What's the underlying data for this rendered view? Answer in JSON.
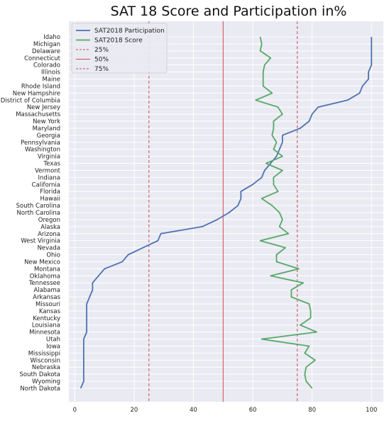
{
  "chart_data": {
    "type": "line",
    "orientation": "horizontal-categories",
    "title": "SAT 18 Score and Participation in%",
    "xlabel": "",
    "ylabel": "",
    "xlim": [
      -2,
      104
    ],
    "x_ticks": [
      0,
      20,
      40,
      60,
      80,
      100
    ],
    "grid": true,
    "legend_position": "top-left",
    "categories": [
      "Idaho",
      "Michigan",
      "Delaware",
      "Connecticut",
      "Colorado",
      "Illinois",
      "Maine",
      "Rhode Island",
      "New Hampshire",
      "District of Columbia",
      "New Jersey",
      "Massachusetts",
      "New York",
      "Maryland",
      "Georgia",
      "Pennsylvania",
      "Washington",
      "Virginia",
      "Texas",
      "Vermont",
      "Indiana",
      "California",
      "Florida",
      "Hawaii",
      "South Carolina",
      "North Carolina",
      "Oregon",
      "Alaska",
      "Arizona",
      "West Virginia",
      "Nevada",
      "Ohio",
      "New Mexico",
      "Montana",
      "Oklahoma",
      "Tennessee",
      "Alabama",
      "Arkansas",
      "Missouri",
      "Kansas",
      "Kentucky",
      "Louisiana",
      "Minnesota",
      "Utah",
      "Iowa",
      "Mississippi",
      "Wisconsin",
      "Nebraska",
      "South Dakota",
      "Wyoming",
      "North Dakota"
    ],
    "series": [
      {
        "name": "SAT2018 Participation",
        "color": "#4c72b0",
        "values": [
          100,
          100,
          100,
          100,
          100,
          99,
          99,
          97,
          96,
          92,
          82,
          80,
          79,
          76,
          70,
          70,
          69,
          68,
          66,
          64,
          63,
          60,
          56,
          56,
          55,
          52,
          48,
          43,
          29,
          28,
          23,
          18,
          16,
          10,
          8,
          6,
          6,
          5,
          4,
          4,
          4,
          4,
          4,
          3,
          3,
          3,
          3,
          3,
          3,
          3,
          2
        ]
      },
      {
        "name": "SAT2018 Score",
        "color": "#55a868",
        "values": [
          62.5,
          63,
          62.5,
          66,
          64,
          63.5,
          63.5,
          63.5,
          66.5,
          61,
          68.5,
          70,
          67,
          67,
          66.5,
          68,
          67,
          70,
          64.5,
          70,
          67,
          67,
          68.5,
          63,
          66.5,
          69,
          70,
          69,
          72,
          62.5,
          71,
          68,
          68,
          75.5,
          66,
          77,
          73,
          73,
          79,
          79.5,
          79.5,
          76,
          81.5,
          63,
          79,
          77.5,
          81,
          78,
          77.5,
          78,
          80
        ]
      }
    ],
    "reference_lines": [
      {
        "name": "25%",
        "value": 25,
        "color": "#c44e52",
        "style": "dashed"
      },
      {
        "name": "50%",
        "value": 50,
        "color": "#c44e52",
        "style": "solid"
      },
      {
        "name": "75%",
        "value": 75,
        "color": "#c44e52",
        "style": "dashed"
      }
    ],
    "colors": {
      "plot_background": "#eaeaf2",
      "grid": "#ffffff"
    }
  }
}
